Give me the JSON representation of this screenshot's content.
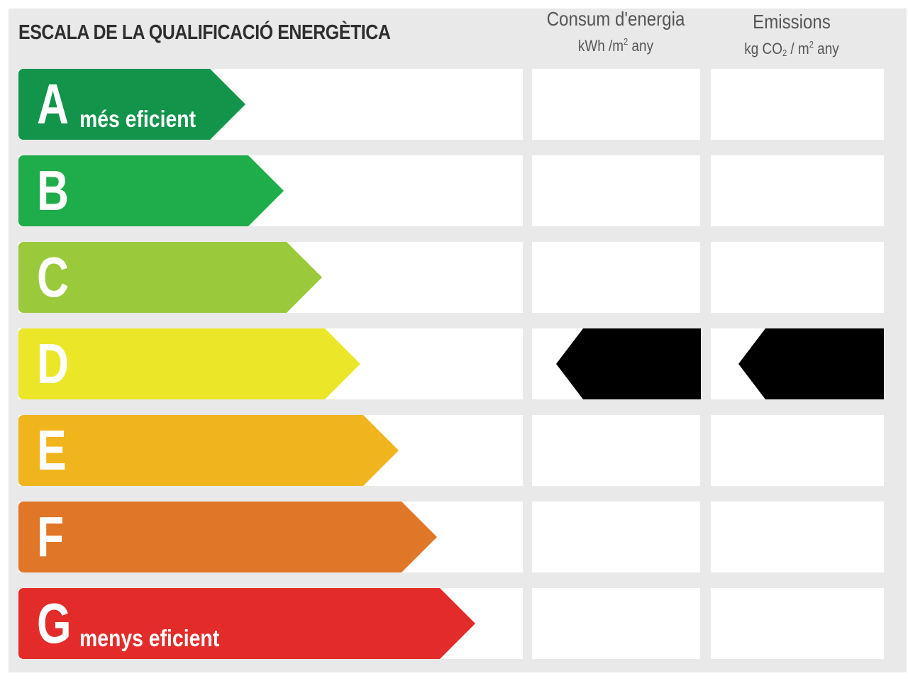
{
  "title": "ESCALA DE LA QUALIFICACIÓ ENERGÈTICA",
  "columns": {
    "consum": {
      "label": "Consum d'energia",
      "unit_a": "kWh /m",
      "unit_sup": "2",
      "unit_b": " any"
    },
    "emissions": {
      "label": "Emissions",
      "unit_a": "kg CO",
      "unit_sub": "2",
      "unit_mid": " / m",
      "unit_sup": "2",
      "unit_b": " any"
    }
  },
  "grades": [
    {
      "letter": "A",
      "subtitle": "més eficient",
      "color": "#12944b"
    },
    {
      "letter": "B",
      "subtitle": "",
      "color": "#1fac4a"
    },
    {
      "letter": "C",
      "subtitle": "",
      "color": "#9bc93c"
    },
    {
      "letter": "D",
      "subtitle": "",
      "color": "#ebe728"
    },
    {
      "letter": "E",
      "subtitle": "",
      "color": "#f0b51c"
    },
    {
      "letter": "F",
      "subtitle": "",
      "color": "#e07628"
    },
    {
      "letter": "G",
      "subtitle": "menys eficient",
      "color": "#e32c2a"
    }
  ],
  "rating": {
    "grade": "D",
    "consum_value": "",
    "emissions_value": "",
    "marker_color": "#000000"
  }
}
